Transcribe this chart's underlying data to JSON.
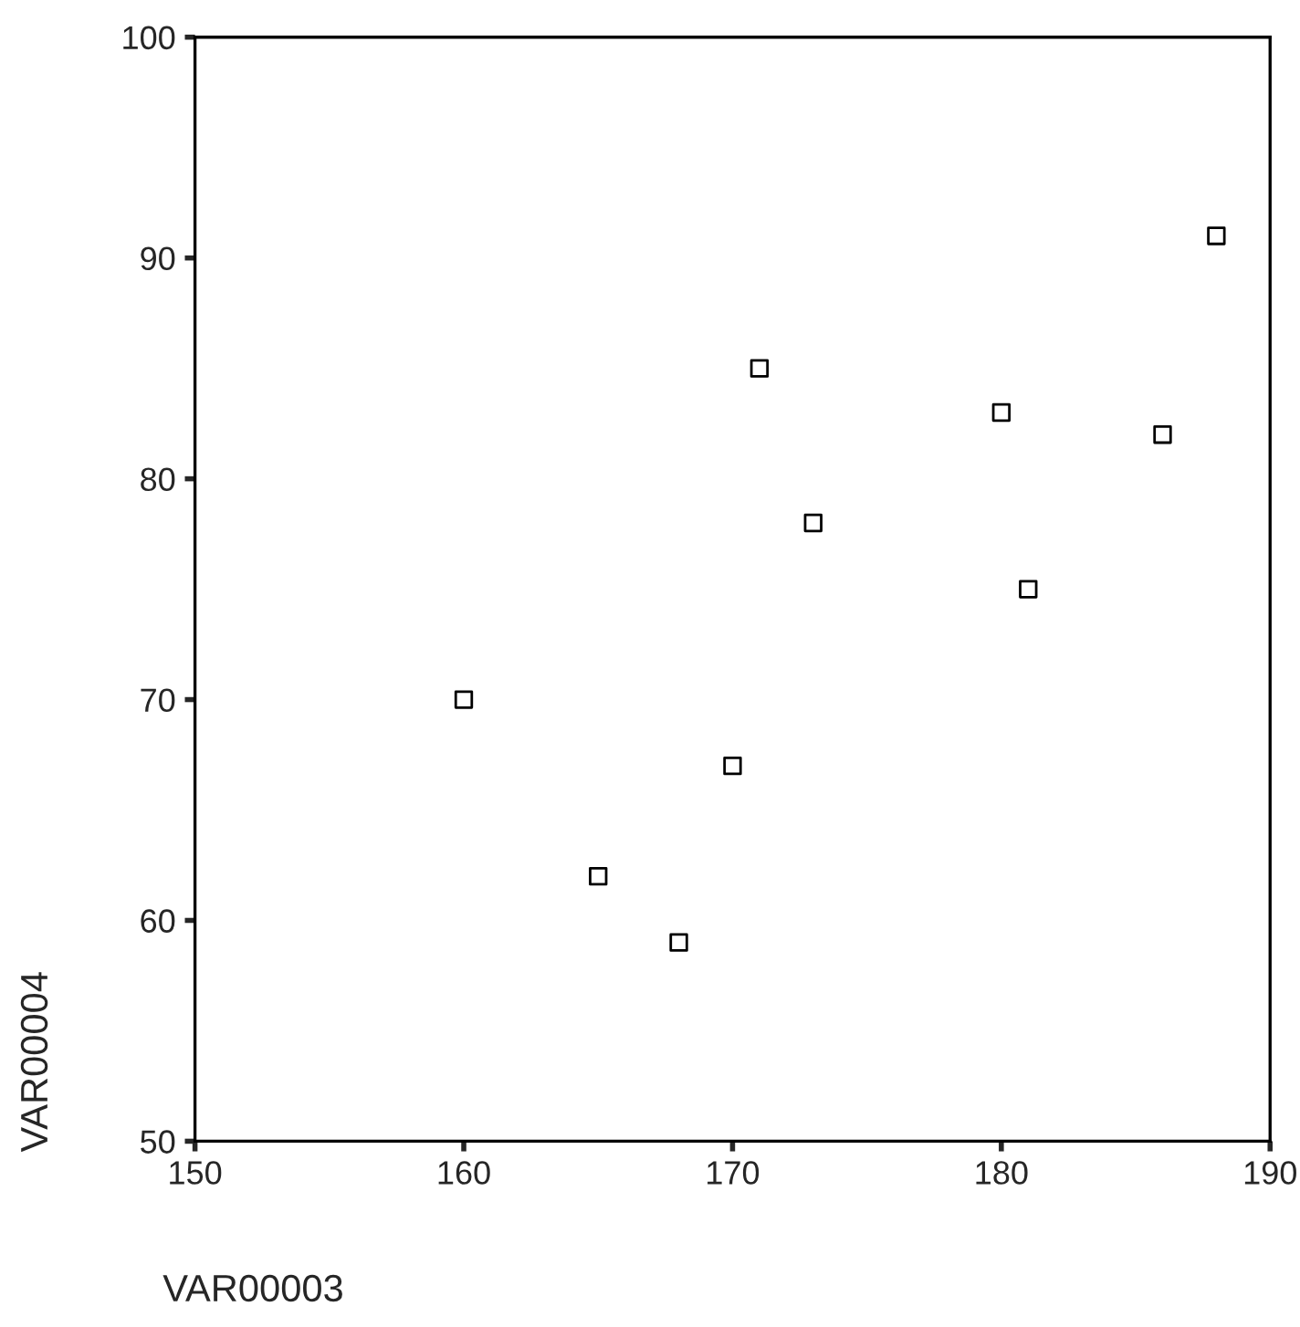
{
  "chart_data": {
    "type": "scatter",
    "xlabel": "VAR00003",
    "ylabel": "VAR00004",
    "x": [
      160,
      165,
      168,
      170,
      171,
      173,
      180,
      181,
      186,
      188
    ],
    "series": [
      {
        "color": "#000000",
        "values": [
          70,
          62,
          59,
          67,
          85,
          78,
          83,
          75,
          82,
          91
        ]
      }
    ],
    "xlim": [
      150,
      190
    ],
    "xticks": [
      150,
      160,
      170,
      180,
      190
    ],
    "ylim": [
      50,
      100
    ],
    "yticks": [
      50,
      60,
      70,
      80,
      90,
      100
    ],
    "marker": "square",
    "grid": false,
    "legend": false
  }
}
